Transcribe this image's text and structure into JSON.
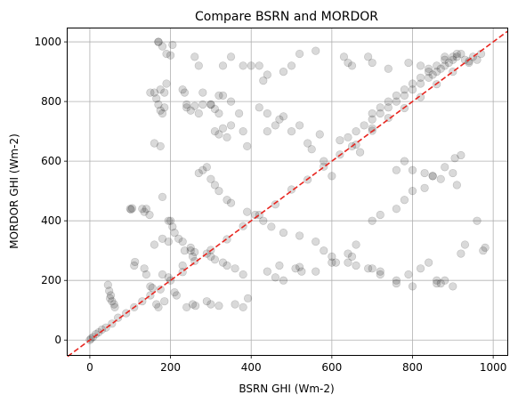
{
  "chart_data": {
    "type": "scatter",
    "title": "Compare BSRN and MORDOR",
    "xlabel": "BSRN GHI (Wm-2)",
    "ylabel": "MORDOR GHI (Wm-2)",
    "xlim": [
      -55,
      1035
    ],
    "ylim": [
      -50,
      1045
    ],
    "xticks": [
      0,
      200,
      400,
      600,
      800,
      1000
    ],
    "yticks": [
      0,
      200,
      400,
      600,
      800,
      1000
    ],
    "grid": true,
    "point_color": "#000000",
    "point_alpha": 0.15,
    "reference_line": {
      "style": "dashed",
      "color": "#e8251f",
      "from": [
        -55,
        -55
      ],
      "to": [
        1035,
        1035
      ]
    },
    "x": [
      0,
      3,
      8,
      15,
      22,
      30,
      40,
      55,
      70,
      90,
      110,
      130,
      150,
      175,
      200,
      230,
      260,
      300,
      340,
      380,
      420,
      460,
      500,
      540,
      580,
      620,
      660,
      700,
      740,
      780,
      820,
      860,
      900,
      940,
      970,
      45,
      48,
      52,
      55,
      60,
      50,
      62,
      100,
      102,
      105,
      110,
      112,
      160,
      165,
      170,
      175,
      180,
      185,
      160,
      175,
      170,
      180,
      190,
      200,
      205,
      240,
      250,
      260,
      230,
      235,
      300,
      310,
      320,
      250,
      255,
      260,
      150,
      140,
      135,
      155,
      165,
      170,
      180,
      185,
      195,
      210,
      215,
      240,
      255,
      262,
      290,
      300,
      320,
      160,
      180,
      195,
      360,
      380,
      392,
      470,
      510,
      520,
      525,
      600,
      650,
      660,
      700,
      720,
      760,
      800,
      860,
      870,
      900,
      930,
      975,
      170,
      175,
      185,
      150,
      190,
      260,
      280,
      270,
      330,
      350,
      380,
      400,
      420,
      430,
      440,
      480,
      500,
      560,
      520,
      630,
      640,
      650,
      690,
      700,
      740,
      790,
      820,
      840,
      880,
      910,
      180,
      195,
      320,
      330,
      350,
      370,
      420,
      440,
      230,
      235,
      240,
      270,
      280,
      300,
      310,
      320,
      330,
      340,
      350,
      380,
      390,
      440,
      460,
      470,
      480,
      500,
      520,
      540,
      550,
      570,
      580,
      600,
      620,
      650,
      670,
      700,
      760,
      780,
      800,
      830,
      850,
      870,
      900,
      910,
      920,
      960,
      980,
      130,
      135,
      140,
      148,
      200,
      205,
      210,
      220,
      230,
      250,
      290,
      300,
      310,
      330,
      340,
      360,
      380,
      440,
      460,
      480,
      560,
      610,
      640,
      660,
      700,
      720,
      760,
      780,
      800,
      830,
      850,
      880,
      905,
      920,
      270,
      280,
      290,
      300,
      310,
      320,
      340,
      350,
      390,
      410,
      430,
      450,
      480,
      520,
      560,
      580,
      600,
      640,
      690,
      720,
      760,
      790,
      820,
      840,
      860,
      880,
      640,
      660,
      680,
      700,
      720,
      740,
      760,
      780,
      800,
      820,
      840,
      850,
      860,
      870,
      880,
      890,
      900,
      910,
      920,
      930,
      940,
      950,
      960,
      700,
      720,
      740,
      760,
      780,
      800,
      820,
      840,
      860,
      880,
      900
    ],
    "y": [
      0,
      5,
      10,
      20,
      26,
      35,
      42,
      55,
      75,
      90,
      110,
      130,
      150,
      170,
      200,
      228,
      265,
      302,
      338,
      382,
      420,
      455,
      505,
      538,
      582,
      622,
      655,
      702,
      745,
      778,
      815,
      858,
      900,
      935,
      960,
      185,
      165,
      150,
      130,
      120,
      140,
      110,
      440,
      438,
      442,
      250,
      262,
      830,
      810,
      790,
      770,
      760,
      780,
      660,
      650,
      1000,
      985,
      960,
      955,
      990,
      790,
      770,
      785,
      250,
      300,
      790,
      775,
      760,
      300,
      280,
      295,
      180,
      220,
      240,
      175,
      120,
      110,
      220,
      130,
      210,
      160,
      150,
      110,
      120,
      115,
      130,
      120,
      115,
      320,
      340,
      330,
      120,
      110,
      140,
      250,
      240,
      245,
      230,
      260,
      280,
      250,
      240,
      230,
      190,
      180,
      200,
      190,
      180,
      320,
      300,
      1000,
      840,
      830,
      830,
      860,
      950,
      830,
      920,
      920,
      950,
      920,
      920,
      920,
      870,
      890,
      900,
      920,
      970,
      960,
      950,
      930,
      920,
      950,
      930,
      910,
      930,
      920,
      910,
      950,
      960,
      480,
      400,
      820,
      820,
      800,
      760,
      780,
      760,
      840,
      830,
      780,
      760,
      790,
      790,
      700,
      690,
      710,
      680,
      720,
      700,
      650,
      700,
      720,
      740,
      750,
      700,
      720,
      660,
      640,
      690,
      600,
      550,
      670,
      650,
      630,
      710,
      570,
      600,
      570,
      560,
      550,
      540,
      560,
      520,
      290,
      400,
      310,
      440,
      430,
      440,
      420,
      400,
      380,
      360,
      340,
      330,
      310,
      290,
      280,
      270,
      260,
      250,
      240,
      220,
      230,
      210,
      200,
      230,
      260,
      290,
      320,
      400,
      420,
      440,
      470,
      500,
      510,
      550,
      580,
      610,
      620,
      560,
      570,
      580,
      540,
      520,
      500,
      470,
      460,
      430,
      420,
      400,
      380,
      360,
      350,
      330,
      300,
      280,
      260,
      240,
      220,
      200,
      220,
      240,
      260,
      190,
      200,
      680,
      700,
      720,
      740,
      760,
      780,
      800,
      820,
      840,
      860,
      880,
      890,
      900,
      910,
      920,
      930,
      940,
      950,
      960,
      940,
      930,
      950,
      940,
      760,
      780,
      800,
      820,
      840,
      860,
      880,
      900,
      920,
      940,
      950
    ]
  }
}
